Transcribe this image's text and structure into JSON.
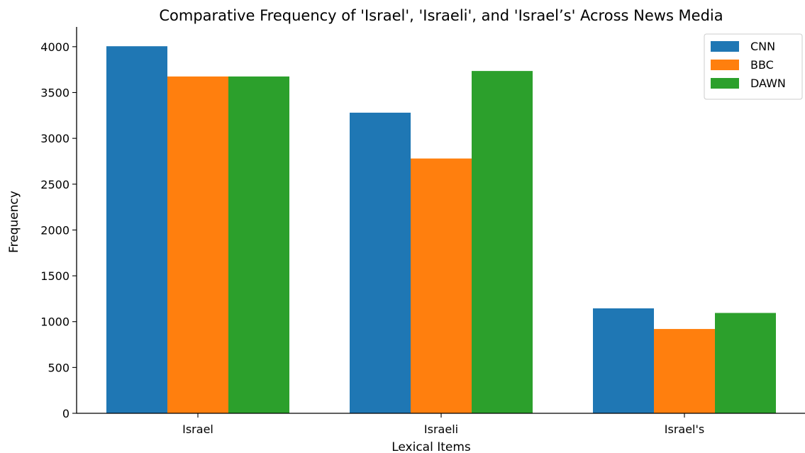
{
  "chart_data": {
    "type": "bar",
    "title": "Comparative Frequency of 'Israel', 'Israeli', and 'Israel’s' Across News Media",
    "xlabel": "Lexical Items",
    "ylabel": "Frequency",
    "categories": [
      "Israel",
      "Israeli",
      "Israel's"
    ],
    "series": [
      {
        "name": "CNN",
        "color": "#1f77b4",
        "values": [
          4005,
          3280,
          1145
        ]
      },
      {
        "name": "BBC",
        "color": "#ff7f0e",
        "values": [
          3675,
          2780,
          920
        ]
      },
      {
        "name": "DAWN",
        "color": "#2ca02c",
        "values": [
          3675,
          3735,
          1095
        ]
      }
    ],
    "ylim": [
      0,
      4200
    ],
    "yticks": [
      0,
      500,
      1000,
      1500,
      2000,
      2500,
      3000,
      3500,
      4000
    ],
    "legend": "top-right",
    "grid": false
  }
}
